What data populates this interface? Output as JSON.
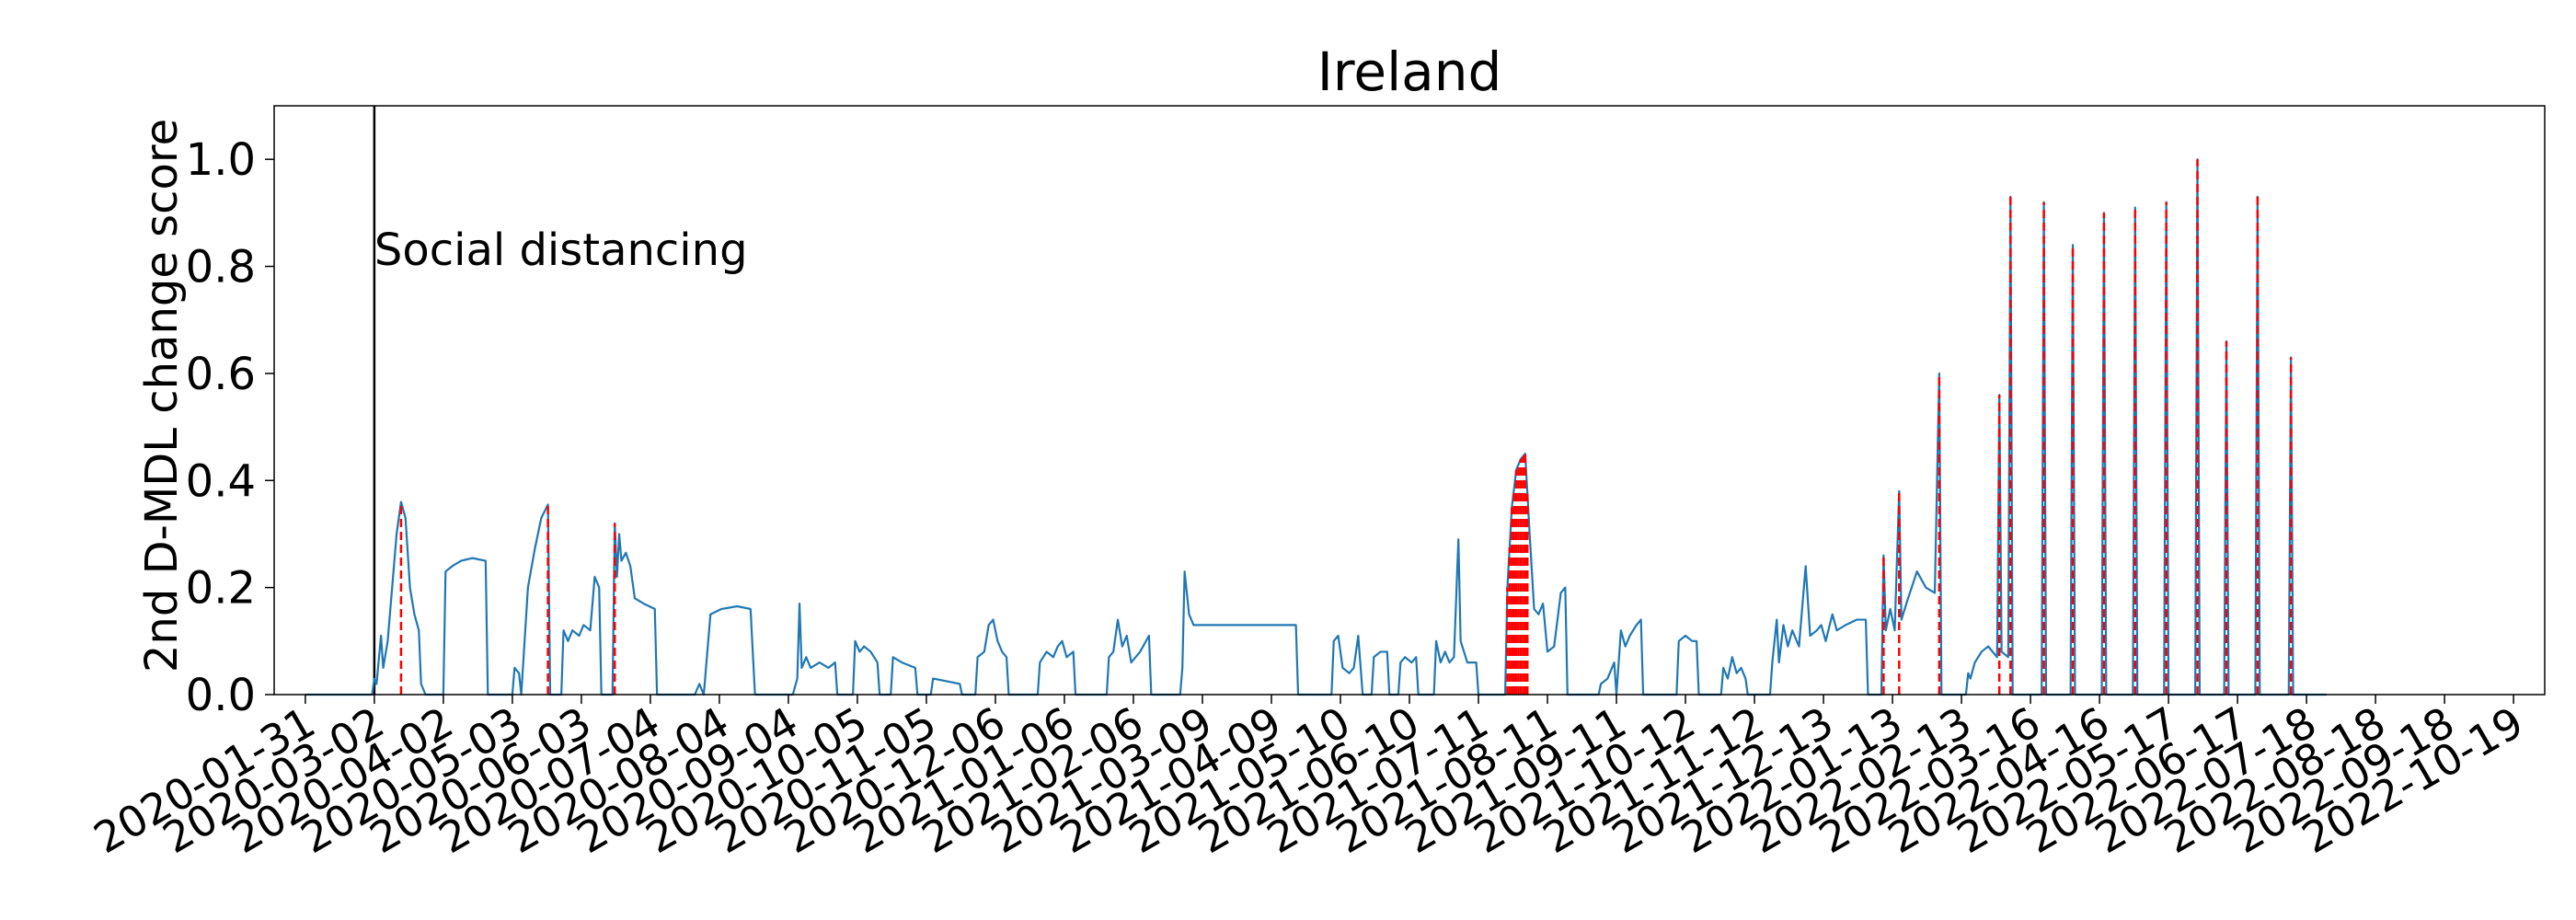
{
  "chart_data": {
    "type": "line",
    "title": "Ireland",
    "ylabel": "2nd D-MDL change score",
    "xlabel": "",
    "ylim": [
      0,
      1.1
    ],
    "xlim": [
      "2020-01-17",
      "2022-11-02"
    ],
    "yticks": [
      0.0,
      0.2,
      0.4,
      0.6,
      0.8,
      1.0
    ],
    "ytick_labels": [
      "0.0",
      "0.2",
      "0.4",
      "0.6",
      "0.8",
      "1.0"
    ],
    "xticks": [
      "2020-01-31",
      "2020-03-02",
      "2020-04-02",
      "2020-05-03",
      "2020-06-03",
      "2020-07-04",
      "2020-08-04",
      "2020-09-04",
      "2020-10-05",
      "2020-11-05",
      "2020-12-06",
      "2021-01-06",
      "2021-02-06",
      "2021-03-09",
      "2021-04-09",
      "2021-05-10",
      "2021-06-10",
      "2021-07-11",
      "2021-08-11",
      "2021-09-11",
      "2021-10-12",
      "2021-11-12",
      "2021-12-13",
      "2022-01-13",
      "2022-02-13",
      "2022-03-16",
      "2022-04-16",
      "2022-05-17",
      "2022-06-17",
      "2022-07-18",
      "2022-08-18",
      "2022-09-18",
      "2022-10-19"
    ],
    "grid": false,
    "series": [
      {
        "color": "#1f77b4",
        "points": [
          [
            "2020-01-31",
            0
          ],
          [
            "2020-03-01",
            0
          ],
          [
            "2020-03-02",
            0.03
          ],
          [
            "2020-03-03",
            0.02
          ],
          [
            "2020-03-05",
            0.11
          ],
          [
            "2020-03-06",
            0.05
          ],
          [
            "2020-03-08",
            0.1
          ],
          [
            "2020-03-10",
            0.2
          ],
          [
            "2020-03-12",
            0.3
          ],
          [
            "2020-03-14",
            0.36
          ],
          [
            "2020-03-16",
            0.33
          ],
          [
            "2020-03-18",
            0.2
          ],
          [
            "2020-03-20",
            0.15
          ],
          [
            "2020-03-22",
            0.12
          ],
          [
            "2020-03-23",
            0.02
          ],
          [
            "2020-03-25",
            0.0
          ],
          [
            "2020-04-02",
            0.0
          ],
          [
            "2020-04-03",
            0.23
          ],
          [
            "2020-04-06",
            0.24
          ],
          [
            "2020-04-10",
            0.25
          ],
          [
            "2020-04-15",
            0.255
          ],
          [
            "2020-04-21",
            0.25
          ],
          [
            "2020-04-22",
            0.0
          ],
          [
            "2020-05-03",
            0.0
          ],
          [
            "2020-05-04",
            0.05
          ],
          [
            "2020-05-06",
            0.04
          ],
          [
            "2020-05-07",
            0.0
          ],
          [
            "2020-05-10",
            0.2
          ],
          [
            "2020-05-13",
            0.27
          ],
          [
            "2020-05-16",
            0.33
          ],
          [
            "2020-05-19",
            0.355
          ],
          [
            "2020-05-20",
            0.0
          ],
          [
            "2020-05-25",
            0.0
          ],
          [
            "2020-05-26",
            0.12
          ],
          [
            "2020-05-28",
            0.1
          ],
          [
            "2020-05-30",
            0.12
          ],
          [
            "2020-06-02",
            0.11
          ],
          [
            "2020-06-04",
            0.13
          ],
          [
            "2020-06-07",
            0.12
          ],
          [
            "2020-06-09",
            0.22
          ],
          [
            "2020-06-11",
            0.2
          ],
          [
            "2020-06-12",
            0.0
          ],
          [
            "2020-06-17",
            0.0
          ],
          [
            "2020-06-18",
            0.32
          ],
          [
            "2020-06-19",
            0.22
          ],
          [
            "2020-06-20",
            0.3
          ],
          [
            "2020-06-21",
            0.25
          ],
          [
            "2020-06-23",
            0.265
          ],
          [
            "2020-06-25",
            0.24
          ],
          [
            "2020-06-27",
            0.18
          ],
          [
            "2020-07-01",
            0.17
          ],
          [
            "2020-07-06",
            0.16
          ],
          [
            "2020-07-07",
            0.0
          ],
          [
            "2020-07-24",
            0.0
          ],
          [
            "2020-07-26",
            0.02
          ],
          [
            "2020-07-28",
            0.0
          ],
          [
            "2020-07-31",
            0.15
          ],
          [
            "2020-08-05",
            0.16
          ],
          [
            "2020-08-12",
            0.165
          ],
          [
            "2020-08-18",
            0.16
          ],
          [
            "2020-08-20",
            0.0
          ],
          [
            "2020-09-06",
            0.0
          ],
          [
            "2020-09-08",
            0.03
          ],
          [
            "2020-09-09",
            0.17
          ],
          [
            "2020-09-10",
            0.05
          ],
          [
            "2020-09-12",
            0.07
          ],
          [
            "2020-09-14",
            0.05
          ],
          [
            "2020-09-18",
            0.06
          ],
          [
            "2020-09-22",
            0.05
          ],
          [
            "2020-09-25",
            0.06
          ],
          [
            "2020-09-26",
            0.0
          ],
          [
            "2020-10-03",
            0.0
          ],
          [
            "2020-10-04",
            0.1
          ],
          [
            "2020-10-06",
            0.08
          ],
          [
            "2020-10-08",
            0.09
          ],
          [
            "2020-10-11",
            0.08
          ],
          [
            "2020-10-14",
            0.06
          ],
          [
            "2020-10-15",
            0.0
          ],
          [
            "2020-10-20",
            0.0
          ],
          [
            "2020-10-21",
            0.07
          ],
          [
            "2020-10-25",
            0.06
          ],
          [
            "2020-10-31",
            0.05
          ],
          [
            "2020-11-01",
            0.0
          ],
          [
            "2020-11-07",
            0.0
          ],
          [
            "2020-11-08",
            0.03
          ],
          [
            "2020-11-14",
            0.025
          ],
          [
            "2020-11-20",
            0.02
          ],
          [
            "2020-11-21",
            0.0
          ],
          [
            "2020-11-27",
            0.0
          ],
          [
            "2020-11-28",
            0.07
          ],
          [
            "2020-12-01",
            0.08
          ],
          [
            "2020-12-03",
            0.13
          ],
          [
            "2020-12-05",
            0.14
          ],
          [
            "2020-12-07",
            0.1
          ],
          [
            "2020-12-09",
            0.08
          ],
          [
            "2020-12-11",
            0.07
          ],
          [
            "2020-12-12",
            0.0
          ],
          [
            "2020-12-25",
            0.0
          ],
          [
            "2020-12-26",
            0.06
          ],
          [
            "2020-12-29",
            0.08
          ],
          [
            "2021-01-01",
            0.07
          ],
          [
            "2021-01-03",
            0.09
          ],
          [
            "2021-01-05",
            0.1
          ],
          [
            "2021-01-07",
            0.07
          ],
          [
            "2021-01-10",
            0.08
          ],
          [
            "2021-01-11",
            0.0
          ],
          [
            "2021-01-25",
            0.0
          ],
          [
            "2021-01-26",
            0.07
          ],
          [
            "2021-01-28",
            0.08
          ],
          [
            "2021-01-30",
            0.14
          ],
          [
            "2021-02-01",
            0.09
          ],
          [
            "2021-02-03",
            0.11
          ],
          [
            "2021-02-05",
            0.06
          ],
          [
            "2021-02-09",
            0.08
          ],
          [
            "2021-02-13",
            0.11
          ],
          [
            "2021-02-14",
            0.0
          ],
          [
            "2021-02-27",
            0.0
          ],
          [
            "2021-02-28",
            0.05
          ],
          [
            "2021-03-01",
            0.23
          ],
          [
            "2021-03-03",
            0.15
          ],
          [
            "2021-03-05",
            0.13
          ],
          [
            "2021-03-15",
            0.13
          ],
          [
            "2021-04-01",
            0.13
          ],
          [
            "2021-04-20",
            0.13
          ],
          [
            "2021-04-21",
            0.0
          ],
          [
            "2021-05-06",
            0.0
          ],
          [
            "2021-05-07",
            0.1
          ],
          [
            "2021-05-09",
            0.11
          ],
          [
            "2021-05-11",
            0.05
          ],
          [
            "2021-05-14",
            0.04
          ],
          [
            "2021-05-16",
            0.05
          ],
          [
            "2021-05-18",
            0.11
          ],
          [
            "2021-05-20",
            0.0
          ],
          [
            "2021-05-24",
            0.0
          ],
          [
            "2021-05-25",
            0.07
          ],
          [
            "2021-05-28",
            0.08
          ],
          [
            "2021-05-31",
            0.08
          ],
          [
            "2021-06-01",
            0.0
          ],
          [
            "2021-06-05",
            0.0
          ],
          [
            "2021-06-06",
            0.06
          ],
          [
            "2021-06-08",
            0.07
          ],
          [
            "2021-06-11",
            0.06
          ],
          [
            "2021-06-13",
            0.07
          ],
          [
            "2021-06-14",
            0.0
          ],
          [
            "2021-06-21",
            0.0
          ],
          [
            "2021-06-22",
            0.1
          ],
          [
            "2021-06-24",
            0.06
          ],
          [
            "2021-06-26",
            0.08
          ],
          [
            "2021-06-28",
            0.06
          ],
          [
            "2021-06-30",
            0.07
          ],
          [
            "2021-07-02",
            0.29
          ],
          [
            "2021-07-03",
            0.1
          ],
          [
            "2021-07-06",
            0.06
          ],
          [
            "2021-07-10",
            0.06
          ],
          [
            "2021-07-11",
            0.0
          ],
          [
            "2021-07-23",
            0.0
          ],
          [
            "2021-07-24",
            0.2
          ],
          [
            "2021-07-26",
            0.35
          ],
          [
            "2021-07-28",
            0.42
          ],
          [
            "2021-07-30",
            0.44
          ],
          [
            "2021-08-01",
            0.45
          ],
          [
            "2021-08-03",
            0.3
          ],
          [
            "2021-08-05",
            0.16
          ],
          [
            "2021-08-07",
            0.15
          ],
          [
            "2021-08-09",
            0.17
          ],
          [
            "2021-08-11",
            0.08
          ],
          [
            "2021-08-14",
            0.09
          ],
          [
            "2021-08-17",
            0.19
          ],
          [
            "2021-08-19",
            0.2
          ],
          [
            "2021-08-20",
            0.0
          ],
          [
            "2021-09-03",
            0.0
          ],
          [
            "2021-09-04",
            0.02
          ],
          [
            "2021-09-07",
            0.03
          ],
          [
            "2021-09-10",
            0.06
          ],
          [
            "2021-09-11",
            0.0
          ],
          [
            "2021-09-13",
            0.12
          ],
          [
            "2021-09-15",
            0.09
          ],
          [
            "2021-09-17",
            0.11
          ],
          [
            "2021-09-20",
            0.13
          ],
          [
            "2021-09-22",
            0.14
          ],
          [
            "2021-09-23",
            0.0
          ],
          [
            "2021-10-08",
            0.0
          ],
          [
            "2021-10-09",
            0.1
          ],
          [
            "2021-10-12",
            0.11
          ],
          [
            "2021-10-15",
            0.1
          ],
          [
            "2021-10-17",
            0.1
          ],
          [
            "2021-10-18",
            0.0
          ],
          [
            "2021-10-28",
            0.0
          ],
          [
            "2021-10-29",
            0.05
          ],
          [
            "2021-10-31",
            0.03
          ],
          [
            "2021-11-02",
            0.07
          ],
          [
            "2021-11-04",
            0.04
          ],
          [
            "2021-11-06",
            0.05
          ],
          [
            "2021-11-08",
            0.03
          ],
          [
            "2021-11-09",
            0.0
          ],
          [
            "2021-11-19",
            0.0
          ],
          [
            "2021-11-20",
            0.06
          ],
          [
            "2021-11-22",
            0.14
          ],
          [
            "2021-11-23",
            0.06
          ],
          [
            "2021-11-25",
            0.13
          ],
          [
            "2021-11-27",
            0.09
          ],
          [
            "2021-11-29",
            0.12
          ],
          [
            "2021-12-02",
            0.09
          ],
          [
            "2021-12-05",
            0.24
          ],
          [
            "2021-12-07",
            0.11
          ],
          [
            "2021-12-10",
            0.12
          ],
          [
            "2021-12-12",
            0.13
          ],
          [
            "2021-12-14",
            0.1
          ],
          [
            "2021-12-17",
            0.15
          ],
          [
            "2021-12-19",
            0.12
          ],
          [
            "2021-12-23",
            0.13
          ],
          [
            "2021-12-28",
            0.14
          ],
          [
            "2022-01-01",
            0.14
          ],
          [
            "2022-01-02",
            0.0
          ],
          [
            "2022-01-08",
            0.0
          ],
          [
            "2022-01-09",
            0.26
          ],
          [
            "2022-01-10",
            0.12
          ],
          [
            "2022-01-12",
            0.16
          ],
          [
            "2022-01-14",
            0.12
          ],
          [
            "2022-01-16",
            0.38
          ],
          [
            "2022-01-17",
            0.14
          ],
          [
            "2022-01-20",
            0.18
          ],
          [
            "2022-01-24",
            0.23
          ],
          [
            "2022-01-28",
            0.2
          ],
          [
            "2022-02-01",
            0.19
          ],
          [
            "2022-02-03",
            0.6
          ],
          [
            "2022-02-04",
            0.0
          ],
          [
            "2022-02-15",
            0.0
          ],
          [
            "2022-02-16",
            0.04
          ],
          [
            "2022-02-17",
            0.03
          ],
          [
            "2022-02-19",
            0.06
          ],
          [
            "2022-02-22",
            0.08
          ],
          [
            "2022-02-25",
            0.09
          ],
          [
            "2022-03-01",
            0.07
          ],
          [
            "2022-03-02",
            0.56
          ],
          [
            "2022-03-03",
            0.08
          ],
          [
            "2022-03-06",
            0.07
          ],
          [
            "2022-03-07",
            0.93
          ],
          [
            "2022-03-08",
            0.0
          ],
          [
            "2022-03-21",
            0.0
          ],
          [
            "2022-03-22",
            0.92
          ],
          [
            "2022-03-23",
            0.0
          ],
          [
            "2022-04-03",
            0.0
          ],
          [
            "2022-04-04",
            0.84
          ],
          [
            "2022-04-05",
            0.0
          ],
          [
            "2022-04-17",
            0.0
          ],
          [
            "2022-04-18",
            0.9
          ],
          [
            "2022-04-19",
            0.0
          ],
          [
            "2022-05-01",
            0.0
          ],
          [
            "2022-05-02",
            0.91
          ],
          [
            "2022-05-03",
            0.0
          ],
          [
            "2022-05-15",
            0.0
          ],
          [
            "2022-05-16",
            0.92
          ],
          [
            "2022-05-17",
            0.0
          ],
          [
            "2022-05-29",
            0.0
          ],
          [
            "2022-05-30",
            1.0
          ],
          [
            "2022-05-31",
            0.0
          ],
          [
            "2022-06-11",
            0.0
          ],
          [
            "2022-06-12",
            0.66
          ],
          [
            "2022-06-13",
            0.0
          ],
          [
            "2022-06-25",
            0.0
          ],
          [
            "2022-06-26",
            0.93
          ],
          [
            "2022-06-27",
            0.0
          ],
          [
            "2022-07-10",
            0.0
          ],
          [
            "2022-07-11",
            0.63
          ],
          [
            "2022-07-12",
            0.0
          ],
          [
            "2022-07-27",
            0.0
          ]
        ]
      }
    ],
    "change_points": [
      "2020-03-14",
      "2020-05-19",
      "2020-06-18",
      "2021-07-24",
      "2021-07-25",
      "2021-07-26",
      "2021-07-27",
      "2021-07-28",
      "2021-07-29",
      "2021-07-30",
      "2021-07-31",
      "2021-08-01",
      "2021-08-02",
      "2022-01-09",
      "2022-01-16",
      "2022-02-03",
      "2022-03-02",
      "2022-03-07",
      "2022-03-22",
      "2022-04-04",
      "2022-04-18",
      "2022-05-02",
      "2022-05-16",
      "2022-05-30",
      "2022-06-12",
      "2022-06-26",
      "2022-07-11"
    ],
    "change_point_color": "#ff0000",
    "event": {
      "date": "2020-03-02",
      "label": "Social distancing"
    }
  }
}
